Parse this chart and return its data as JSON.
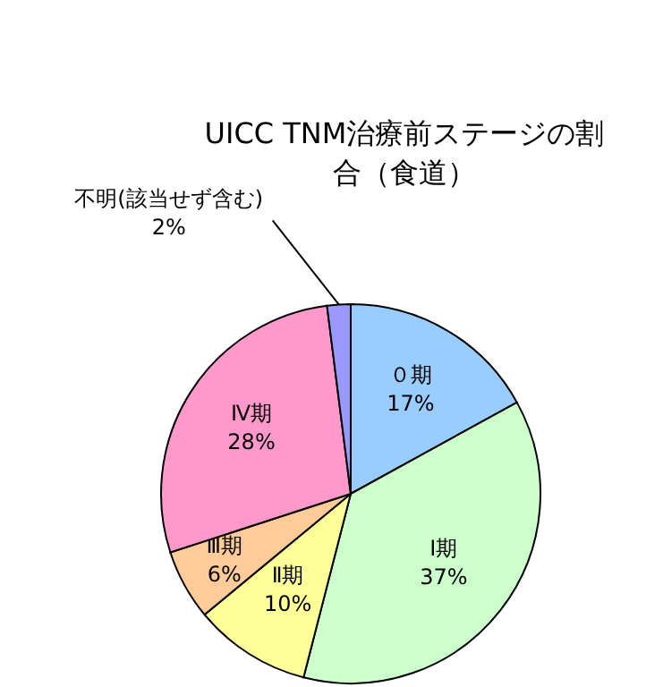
{
  "chart_data": {
    "type": "pie",
    "title": "UICC TNM治療前ステージの割合（食道）",
    "categories": [
      "０期",
      "Ⅰ期",
      "Ⅱ期",
      "Ⅲ期",
      "Ⅳ期",
      "不明(該当せず含む)"
    ],
    "values": [
      17,
      37,
      10,
      6,
      28,
      2
    ],
    "value_labels": [
      "17%",
      "37%",
      "10%",
      "6%",
      "28%",
      "2%"
    ],
    "colors": [
      "#99ccff",
      "#ccffcc",
      "#ffff99",
      "#ffcc99",
      "#ff99cc",
      "#9999ff"
    ]
  }
}
